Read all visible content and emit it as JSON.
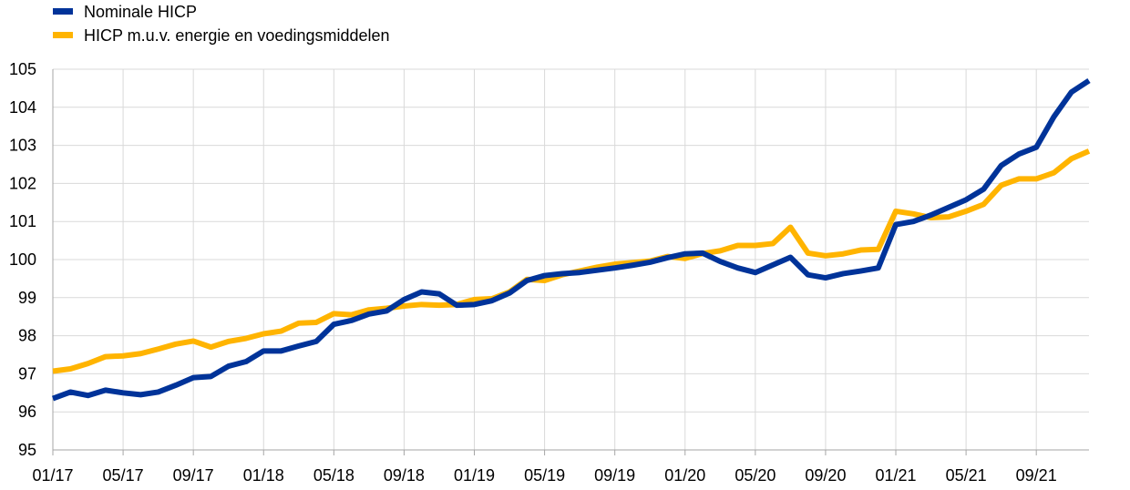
{
  "chart_data": {
    "type": "line",
    "title": "",
    "xlabel": "",
    "ylabel": "",
    "ylim": [
      95,
      105
    ],
    "yticks": [
      95,
      96,
      97,
      98,
      99,
      100,
      101,
      102,
      103,
      104,
      105
    ],
    "xtick_labels": [
      "01/17",
      "05/17",
      "09/17",
      "01/18",
      "05/18",
      "09/18",
      "01/19",
      "05/19",
      "09/19",
      "01/20",
      "05/20",
      "09/20",
      "01/21",
      "05/21",
      "09/21"
    ],
    "grid": "vertical-and-horizontal",
    "legend_position": "top-left",
    "x": [
      "01/17",
      "02/17",
      "03/17",
      "04/17",
      "05/17",
      "06/17",
      "07/17",
      "08/17",
      "09/17",
      "10/17",
      "11/17",
      "12/17",
      "01/18",
      "02/18",
      "03/18",
      "04/18",
      "05/18",
      "06/18",
      "07/18",
      "08/18",
      "09/18",
      "10/18",
      "11/18",
      "12/18",
      "01/19",
      "02/19",
      "03/19",
      "04/19",
      "05/19",
      "06/19",
      "07/19",
      "08/19",
      "09/19",
      "10/19",
      "11/19",
      "12/19",
      "01/20",
      "02/20",
      "03/20",
      "04/20",
      "05/20",
      "06/20",
      "07/20",
      "08/20",
      "09/20",
      "10/20",
      "11/20",
      "12/20",
      "01/21",
      "02/21",
      "03/21",
      "04/21",
      "05/21",
      "06/21",
      "07/21",
      "08/21",
      "09/21",
      "10/21",
      "11/21",
      "12/21"
    ],
    "series": [
      {
        "name": "Nominale HICP",
        "color": "#003399",
        "values": [
          96.35,
          96.52,
          96.43,
          96.57,
          96.5,
          96.45,
          96.52,
          96.7,
          96.9,
          96.93,
          97.2,
          97.32,
          97.6,
          97.6,
          97.73,
          97.85,
          98.3,
          98.4,
          98.57,
          98.65,
          98.95,
          99.15,
          99.1,
          98.8,
          98.82,
          98.92,
          99.12,
          99.45,
          99.58,
          99.63,
          99.66,
          99.72,
          99.78,
          99.85,
          99.93,
          100.05,
          100.15,
          100.17,
          99.95,
          99.78,
          99.66,
          99.86,
          100.06,
          99.6,
          99.52,
          99.63,
          99.7,
          99.78,
          100.92,
          101.0,
          101.17,
          101.37,
          101.57,
          101.85,
          102.47,
          102.77,
          102.95,
          103.75,
          104.4,
          104.7
        ]
      },
      {
        "name": "HICP m.u.v. energie en voedingsmiddelen",
        "color": "#ffb400",
        "values": [
          97.07,
          97.13,
          97.27,
          97.45,
          97.47,
          97.53,
          97.65,
          97.78,
          97.86,
          97.7,
          97.85,
          97.93,
          98.05,
          98.12,
          98.33,
          98.35,
          98.58,
          98.55,
          98.68,
          98.72,
          98.78,
          98.82,
          98.8,
          98.82,
          98.95,
          98.97,
          99.15,
          99.48,
          99.45,
          99.6,
          99.7,
          99.8,
          99.88,
          99.92,
          99.96,
          100.08,
          100.03,
          100.16,
          100.23,
          100.37,
          100.37,
          100.42,
          100.85,
          100.17,
          100.1,
          100.15,
          100.25,
          100.27,
          101.27,
          101.2,
          101.1,
          101.12,
          101.27,
          101.45,
          101.95,
          102.12,
          102.12,
          102.28,
          102.65,
          102.85
        ]
      }
    ]
  }
}
